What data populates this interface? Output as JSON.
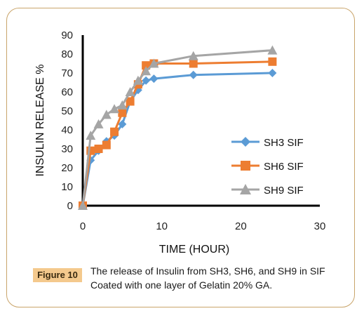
{
  "chart_data": {
    "type": "line",
    "xlabel": "TIME (HOUR)",
    "ylabel": "INSULIN RELEASE %",
    "xlim": [
      0,
      30
    ],
    "ylim": [
      0,
      90
    ],
    "x_ticks": [
      "0",
      "10",
      "20",
      "30"
    ],
    "y_ticks": [
      "0",
      "10",
      "20",
      "30",
      "40",
      "50",
      "60",
      "70",
      "80",
      "90"
    ],
    "grid": false,
    "legend_position": "right",
    "series": [
      {
        "name": "SH3 SIF",
        "color": "#5b9bd5",
        "marker": "diamond",
        "x": [
          0,
          1,
          2,
          3,
          4,
          5,
          6,
          7,
          8,
          9,
          14,
          24
        ],
        "y": [
          0,
          24,
          29,
          34,
          37,
          43,
          55,
          61,
          66,
          67,
          69,
          70
        ]
      },
      {
        "name": "SH6 SIF",
        "color": "#ed7d31",
        "marker": "square",
        "x": [
          0,
          1,
          2,
          3,
          4,
          5,
          6,
          7,
          8,
          9,
          14,
          24
        ],
        "y": [
          0,
          29,
          30,
          32,
          39,
          49,
          55,
          64,
          74,
          75,
          75,
          76
        ]
      },
      {
        "name": "SH9 SIF",
        "color": "#a5a5a5",
        "marker": "triangle",
        "x": [
          0,
          1,
          2,
          3,
          4,
          5,
          6,
          7,
          8,
          9,
          14,
          24
        ],
        "y": [
          0,
          37,
          43,
          48,
          51,
          53,
          60,
          66,
          71,
          75,
          79,
          82
        ]
      }
    ]
  },
  "caption": {
    "label": "Figure 10",
    "text": "The release of Insulin from SH3, SH6, and SH9 in SIF Coated with one layer of Gelatin 20% GA."
  }
}
